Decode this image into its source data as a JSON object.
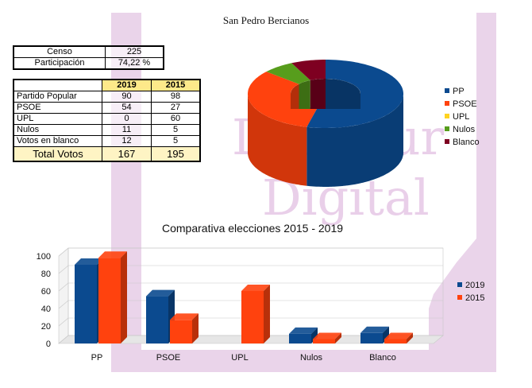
{
  "title": "San Pedro Bercianos",
  "census": [
    {
      "label": "Censo",
      "value": "225"
    },
    {
      "label": "Participación",
      "value": "74,22 %"
    }
  ],
  "results": {
    "col_2019": "2019",
    "col_2015": "2015",
    "rows": [
      {
        "label": "Partido Popular",
        "v2019": "90",
        "v2015": "98"
      },
      {
        "label": "PSOE",
        "v2019": "54",
        "v2015": "27"
      },
      {
        "label": "UPL",
        "v2019": "0",
        "v2015": "60"
      },
      {
        "label": "Nulos",
        "v2019": "11",
        "v2015": "5"
      },
      {
        "label": "Votos en blanco",
        "v2019": "12",
        "v2015": "5"
      }
    ],
    "total": {
      "label": "Total Votos",
      "v2019": "167",
      "v2015": "195"
    }
  },
  "watermark": {
    "line1": "LeónSur",
    "line2": "Digital"
  },
  "colors": {
    "pp": "#0b4a8f",
    "psoe": "#ff420e",
    "upl": "#ffd320",
    "nulos": "#579d1c",
    "blanco": "#7e0021",
    "watermark": "#e3c6e3"
  },
  "chart_data": [
    {
      "type": "pie",
      "style": "3d-donut",
      "labels": [
        "PP",
        "PSOE",
        "UPL",
        "Nulos",
        "Blanco"
      ],
      "values": [
        90,
        54,
        0,
        11,
        12
      ],
      "legend": "right"
    },
    {
      "type": "bar",
      "style": "3d",
      "title": "Comparativa elecciones 2015 - 2019",
      "categories": [
        "PP",
        "PSOE",
        "UPL",
        "Nulos",
        "Blanco"
      ],
      "series": [
        {
          "name": "2019",
          "values": [
            90,
            54,
            0,
            11,
            12
          ]
        },
        {
          "name": "2015",
          "values": [
            98,
            27,
            60,
            5,
            5
          ]
        }
      ],
      "ylim": [
        0,
        100
      ],
      "yticks": [
        0,
        20,
        40,
        60,
        80,
        100
      ],
      "grid": true,
      "legend": "right"
    }
  ]
}
